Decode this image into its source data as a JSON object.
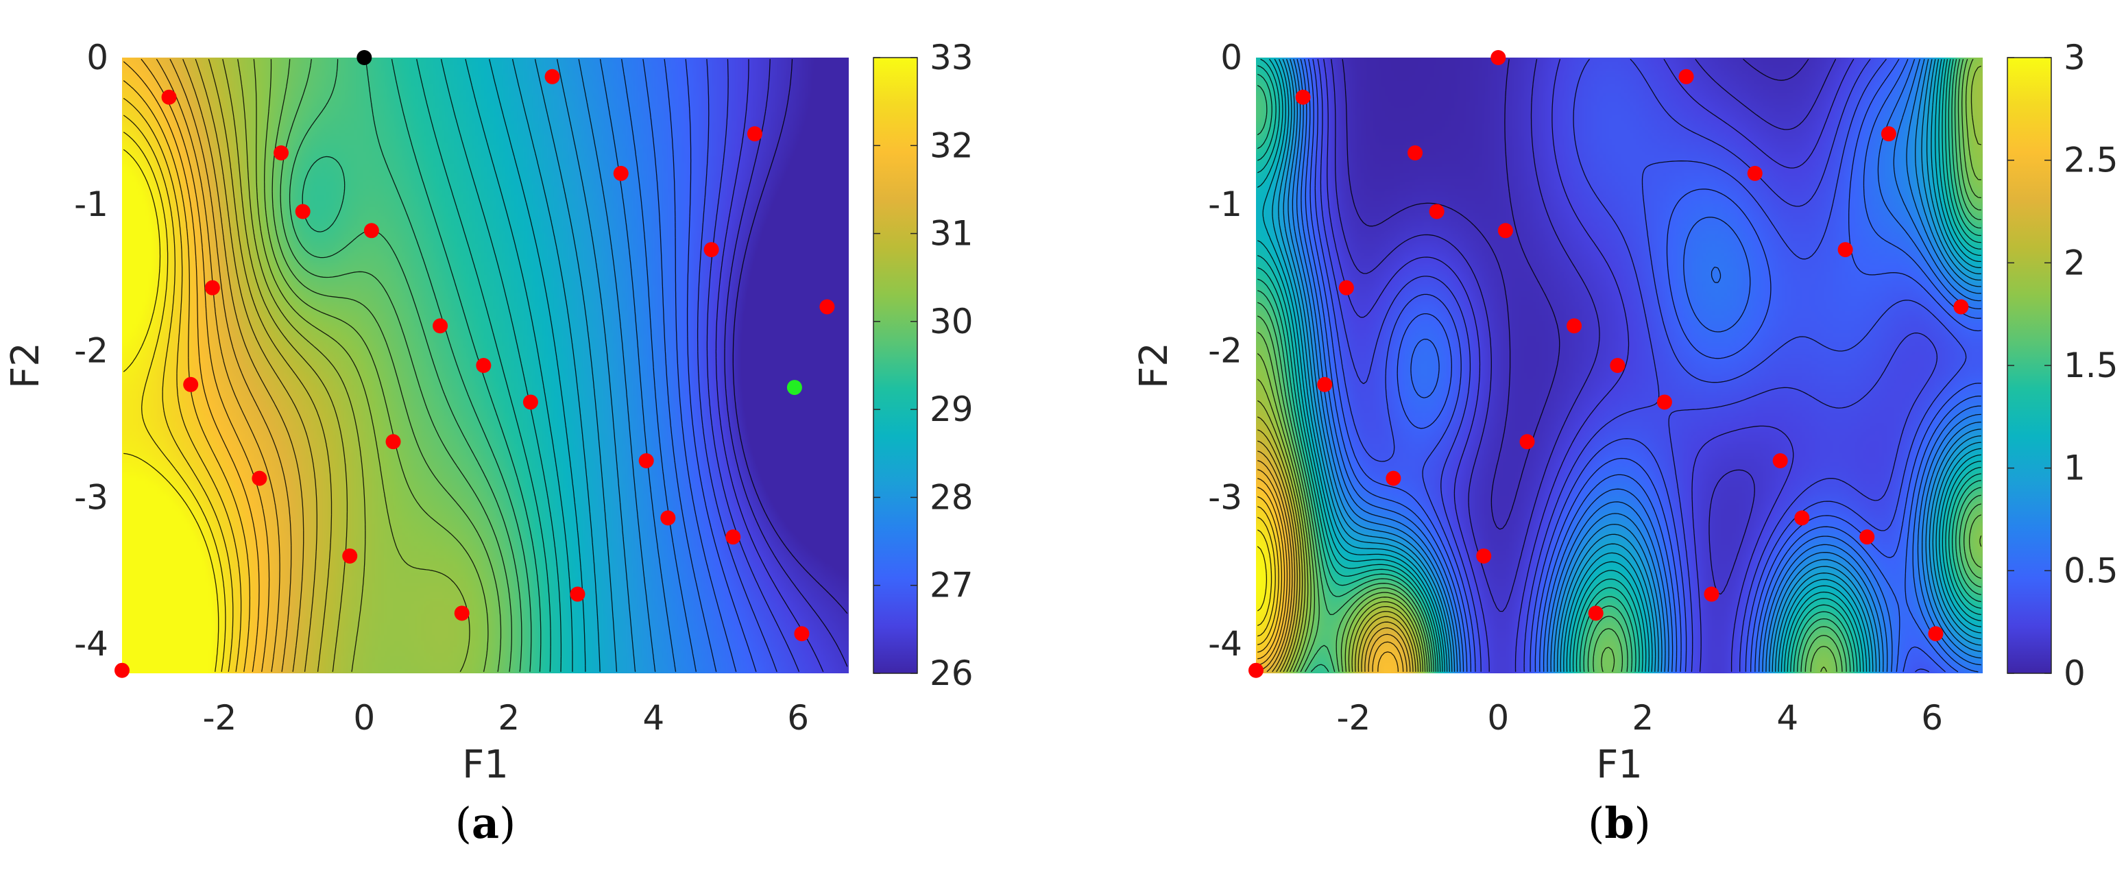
{
  "colormap": [
    "#3e26a8",
    "#4743e2",
    "#3b64fb",
    "#2881ef",
    "#1c9ed8",
    "#0bb4c2",
    "#1ec0a1",
    "#5ac574",
    "#8fc64a",
    "#bcbc37",
    "#e1b43a",
    "#fbc032",
    "#f5d923",
    "#f9fb14"
  ],
  "marker_colors": {
    "sample": "#ff0000",
    "initial": "#000000",
    "optimum": "#22ee22"
  },
  "contour_line_color": "#000000",
  "chart_data": [
    {
      "type": "contour",
      "caption": "(a)",
      "xlabel": "F1",
      "ylabel": "F2",
      "xlim": [
        -3.35,
        6.7
      ],
      "ylim": [
        -4.2,
        0
      ],
      "xticks": [
        -2,
        0,
        2,
        4,
        6
      ],
      "xtick_labels": [
        "-2",
        "0",
        "2",
        "4",
        "6"
      ],
      "yticks": [
        0,
        -1,
        -2,
        -3,
        -4
      ],
      "ytick_labels": [
        "0",
        "-1",
        "-2",
        "-3",
        "-4"
      ],
      "colorbar": {
        "min": 26,
        "max": 33,
        "ticks": [
          33,
          32,
          31,
          30,
          29,
          28,
          27,
          26
        ],
        "tick_labels": [
          "33",
          "32",
          "31",
          "30",
          "29",
          "28",
          "27",
          "26"
        ]
      },
      "surface": {
        "base": 29.5,
        "slope_x": -0.55,
        "slope_y": -0.15,
        "curv_y": 0.0,
        "bumps": [
          {
            "x": -3.3,
            "y": -1.2,
            "a": 1.8,
            "s": 0.8
          },
          {
            "x": -3.3,
            "y": -4.1,
            "a": 2.6,
            "s": 0.7
          },
          {
            "x": -2.2,
            "y": -3.6,
            "a": 1.2,
            "s": 1.0
          },
          {
            "x": 1.5,
            "y": -3.9,
            "a": 1.0,
            "s": 0.8
          },
          {
            "x": -0.8,
            "y": -1.1,
            "a": -0.8,
            "s": 0.5
          },
          {
            "x": 6.0,
            "y": -2.2,
            "a": -1.4,
            "s": 0.9
          },
          {
            "x": -0.5,
            "y": -2.5,
            "a": 0.5,
            "s": 0.9
          },
          {
            "x": 2.0,
            "y": -2.0,
            "a": 0.3,
            "s": 1.2
          }
        ]
      },
      "samples": [
        {
          "x": -3.35,
          "y": -4.18
        },
        {
          "x": -2.7,
          "y": -0.27
        },
        {
          "x": -1.15,
          "y": -0.65
        },
        {
          "x": -0.85,
          "y": -1.05
        },
        {
          "x": 0.1,
          "y": -1.18
        },
        {
          "x": -2.1,
          "y": -1.57
        },
        {
          "x": -2.4,
          "y": -2.23
        },
        {
          "x": -1.45,
          "y": -2.87
        },
        {
          "x": -0.2,
          "y": -3.4
        },
        {
          "x": 0.4,
          "y": -2.62
        },
        {
          "x": 1.05,
          "y": -1.83
        },
        {
          "x": 1.65,
          "y": -2.1
        },
        {
          "x": 2.3,
          "y": -2.35
        },
        {
          "x": 1.35,
          "y": -3.79
        },
        {
          "x": 2.95,
          "y": -3.66
        },
        {
          "x": 2.6,
          "y": -0.13
        },
        {
          "x": 3.55,
          "y": -0.79
        },
        {
          "x": 3.9,
          "y": -2.75
        },
        {
          "x": 4.2,
          "y": -3.14
        },
        {
          "x": 4.8,
          "y": -1.31
        },
        {
          "x": 5.4,
          "y": -0.52
        },
        {
          "x": 5.1,
          "y": -3.27
        },
        {
          "x": 6.4,
          "y": -1.7
        },
        {
          "x": 6.05,
          "y": -3.93
        }
      ],
      "initial_point": {
        "x": 0.0,
        "y": 0.0
      },
      "optimum_point": {
        "x": 5.95,
        "y": -2.25
      }
    },
    {
      "type": "contour",
      "caption": "(b)",
      "xlabel": "F1",
      "ylabel": "F2",
      "xlim": [
        -3.35,
        6.7
      ],
      "ylim": [
        -4.2,
        0
      ],
      "xticks": [
        -2,
        0,
        2,
        4,
        6
      ],
      "xtick_labels": [
        "-2",
        "0",
        "2",
        "4",
        "6"
      ],
      "yticks": [
        0,
        -1,
        -2,
        -3,
        -4
      ],
      "ytick_labels": [
        "0",
        "-1",
        "-2",
        "-3",
        "-4"
      ],
      "colorbar": {
        "min": 0,
        "max": 3,
        "ticks": [
          3,
          2.5,
          2,
          1.5,
          1,
          0.5,
          0
        ],
        "tick_labels": [
          "3",
          "2.5",
          "2",
          "1.5",
          "1",
          "0.5",
          "0"
        ]
      },
      "surface": {
        "base": 0.0,
        "slope_x": 0.0,
        "slope_y": 0.0,
        "curv_y": 0.0,
        "bumps": [
          {
            "x": -1.0,
            "y": -2.1,
            "a": 0.55,
            "s": 0.55
          },
          {
            "x": 1.7,
            "y": -3.2,
            "a": 0.45,
            "s": 0.65
          },
          {
            "x": 3.0,
            "y": -1.5,
            "a": 0.55,
            "s": 0.7
          },
          {
            "x": 1.5,
            "y": -0.4,
            "a": 0.35,
            "s": 0.8
          },
          {
            "x": 4.8,
            "y": -1.8,
            "a": 0.35,
            "s": 0.8
          },
          {
            "x": 5.5,
            "y": -0.6,
            "a": 0.5,
            "s": 0.6
          },
          {
            "x": -3.35,
            "y": -3.3,
            "a": 2.6,
            "s": 0.7
          },
          {
            "x": -3.35,
            "y": -1.8,
            "a": 1.4,
            "s": 0.6
          },
          {
            "x": -3.35,
            "y": -0.3,
            "a": 1.5,
            "s": 0.5
          },
          {
            "x": -1.5,
            "y": -4.2,
            "a": 2.5,
            "s": 0.6
          },
          {
            "x": 1.5,
            "y": -4.2,
            "a": 1.6,
            "s": 0.6
          },
          {
            "x": 4.5,
            "y": -4.2,
            "a": 1.8,
            "s": 0.6
          },
          {
            "x": 6.7,
            "y": -3.3,
            "a": 1.8,
            "s": 0.6
          },
          {
            "x": 6.7,
            "y": -1.0,
            "a": 1.4,
            "s": 0.5
          },
          {
            "x": 6.7,
            "y": 0.0,
            "a": 1.6,
            "s": 0.5
          },
          {
            "x": -3.35,
            "y": -4.2,
            "a": 1.2,
            "s": 0.5
          }
        ]
      },
      "samples": [
        {
          "x": -3.35,
          "y": -4.18
        },
        {
          "x": 0.0,
          "y": 0.0
        },
        {
          "x": -2.7,
          "y": -0.27
        },
        {
          "x": -1.15,
          "y": -0.65
        },
        {
          "x": -0.85,
          "y": -1.05
        },
        {
          "x": 0.1,
          "y": -1.18
        },
        {
          "x": -2.1,
          "y": -1.57
        },
        {
          "x": -2.4,
          "y": -2.23
        },
        {
          "x": -1.45,
          "y": -2.87
        },
        {
          "x": -0.2,
          "y": -3.4
        },
        {
          "x": 0.4,
          "y": -2.62
        },
        {
          "x": 1.05,
          "y": -1.83
        },
        {
          "x": 1.65,
          "y": -2.1
        },
        {
          "x": 2.3,
          "y": -2.35
        },
        {
          "x": 1.35,
          "y": -3.79
        },
        {
          "x": 2.95,
          "y": -3.66
        },
        {
          "x": 2.6,
          "y": -0.13
        },
        {
          "x": 3.55,
          "y": -0.79
        },
        {
          "x": 3.9,
          "y": -2.75
        },
        {
          "x": 4.2,
          "y": -3.14
        },
        {
          "x": 4.8,
          "y": -1.31
        },
        {
          "x": 5.4,
          "y": -0.52
        },
        {
          "x": 5.1,
          "y": -3.27
        },
        {
          "x": 6.4,
          "y": -1.7
        },
        {
          "x": 6.05,
          "y": -3.93
        }
      ]
    }
  ]
}
